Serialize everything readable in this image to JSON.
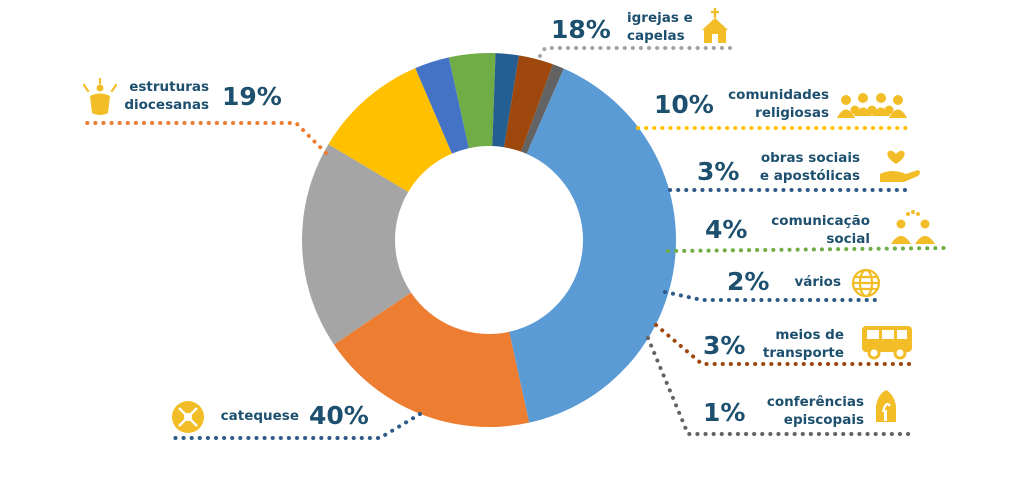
{
  "chart_data": {
    "type": "pie",
    "title": "",
    "donut": true,
    "slices": [
      {
        "label_lines": [
          "igrejas e",
          "capelas"
        ],
        "value": 18,
        "pct_label": "18%",
        "color": "#a5a5a5",
        "dot_color": "#a5a5a5",
        "icon": "church-icon"
      },
      {
        "label_lines": [
          "comunidades",
          "religiosas"
        ],
        "value": 10,
        "pct_label": "10%",
        "color": "#ffc000",
        "dot_color": "#ffc000",
        "icon": "people-group-icon"
      },
      {
        "label_lines": [
          "obras sociais",
          "e apostólicas"
        ],
        "value": 3,
        "pct_label": "3%",
        "color": "#4472c4",
        "dot_color": "#2e5b8a",
        "icon": "hand-heart-icon"
      },
      {
        "label_lines": [
          "comunicação",
          "social"
        ],
        "value": 4,
        "pct_label": "4%",
        "color": "#70ad47",
        "dot_color": "#70ad47",
        "icon": "communication-icon"
      },
      {
        "label_lines": [
          "vários"
        ],
        "value": 2,
        "pct_label": "2%",
        "color": "#255e91",
        "dot_color": "#2e5b8a",
        "icon": "globe-icon"
      },
      {
        "label_lines": [
          "meios de",
          "transporte"
        ],
        "value": 3,
        "pct_label": "3%",
        "color": "#9e480e",
        "dot_color": "#9e480e",
        "icon": "bus-icon"
      },
      {
        "label_lines": [
          "conferências",
          "episcopais"
        ],
        "value": 1,
        "pct_label": "1%",
        "color": "#636363",
        "dot_color": "#636363",
        "icon": "bishop-mitre-icon"
      },
      {
        "label_lines": [
          "catequese"
        ],
        "value": 40,
        "pct_label": "40%",
        "color": "#5b9bd5",
        "dot_color": "#2e5b8a",
        "icon": "catechesis-icon"
      },
      {
        "label_lines": [
          "estruturas",
          "diocesanas"
        ],
        "value": 19,
        "pct_label": "19%",
        "color": "#ed7d31",
        "dot_color": "#ed7d31",
        "icon": "diocese-icon"
      }
    ]
  }
}
